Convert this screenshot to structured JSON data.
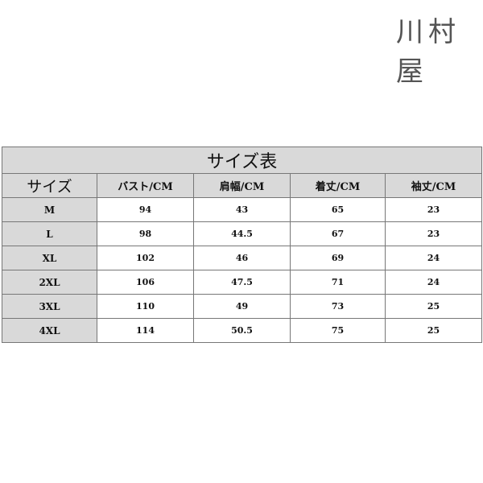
{
  "brand": "川村屋",
  "table": {
    "title": "サイズ表",
    "headers": [
      "サイズ",
      "バスト/CM",
      "肩幅/CM",
      "着丈/CM",
      "袖丈/CM"
    ],
    "rows": [
      [
        "M",
        "94",
        "43",
        "65",
        "23"
      ],
      [
        "L",
        "98",
        "44.5",
        "67",
        "23"
      ],
      [
        "XL",
        "102",
        "46",
        "69",
        "24"
      ],
      [
        "2XL",
        "106",
        "47.5",
        "71",
        "24"
      ],
      [
        "3XL",
        "110",
        "49",
        "73",
        "25"
      ],
      [
        "4XL",
        "114",
        "50.5",
        "75",
        "25"
      ]
    ]
  }
}
